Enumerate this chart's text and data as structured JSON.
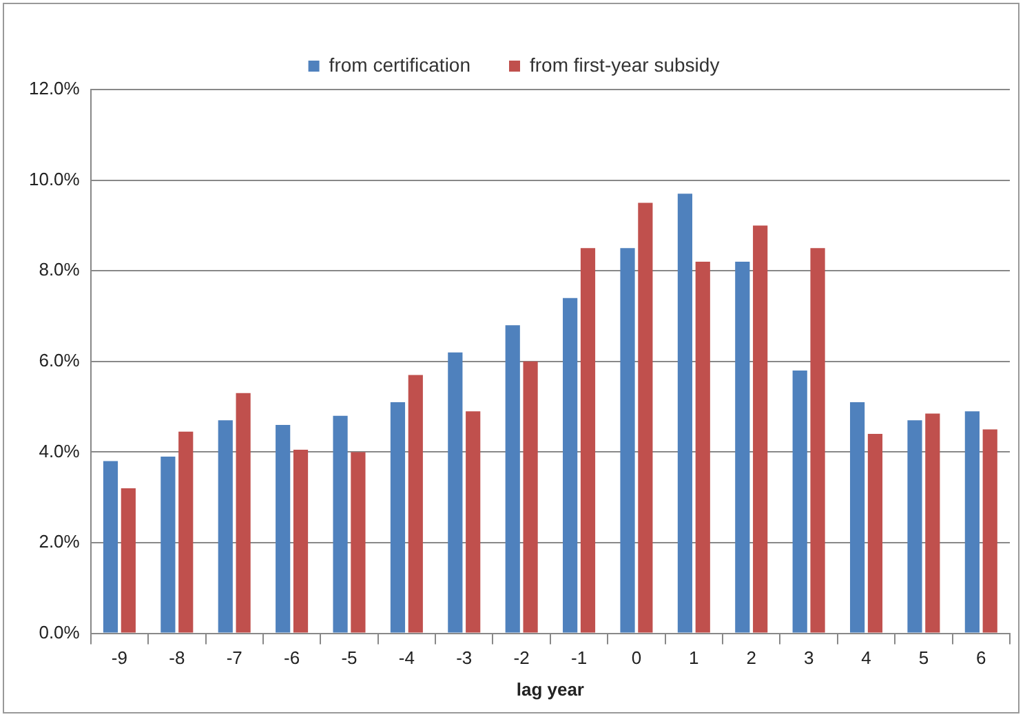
{
  "chart_data": {
    "type": "bar",
    "xlabel": "lag year",
    "categories": [
      "-9",
      "-8",
      "-7",
      "-6",
      "-5",
      "-4",
      "-3",
      "-2",
      "-1",
      "0",
      "1",
      "2",
      "3",
      "4",
      "5",
      "6"
    ],
    "series": [
      {
        "name": "from certification",
        "color": "#4f81bd",
        "values": [
          3.8,
          3.9,
          4.7,
          4.6,
          4.8,
          5.1,
          6.2,
          6.8,
          7.4,
          8.5,
          9.7,
          8.2,
          5.8,
          5.1,
          4.7,
          4.9
        ]
      },
      {
        "name": "from first-year subsidy",
        "color": "#c0504d",
        "values": [
          3.2,
          4.45,
          5.3,
          4.05,
          4.0,
          5.7,
          4.9,
          6.0,
          8.5,
          9.5,
          8.2,
          9.0,
          8.5,
          4.4,
          4.85,
          4.5
        ]
      }
    ],
    "ylim": [
      0,
      12
    ],
    "yticks": [
      {
        "value": 0,
        "label": "0.0%"
      },
      {
        "value": 2,
        "label": "2.0%"
      },
      {
        "value": 4,
        "label": "4.0%"
      },
      {
        "value": 6,
        "label": "6.0%"
      },
      {
        "value": 8,
        "label": "8.0%"
      },
      {
        "value": 10,
        "label": "10.0%"
      },
      {
        "value": 12,
        "label": "12.0%"
      }
    ],
    "grid": "y",
    "legend": "top"
  }
}
